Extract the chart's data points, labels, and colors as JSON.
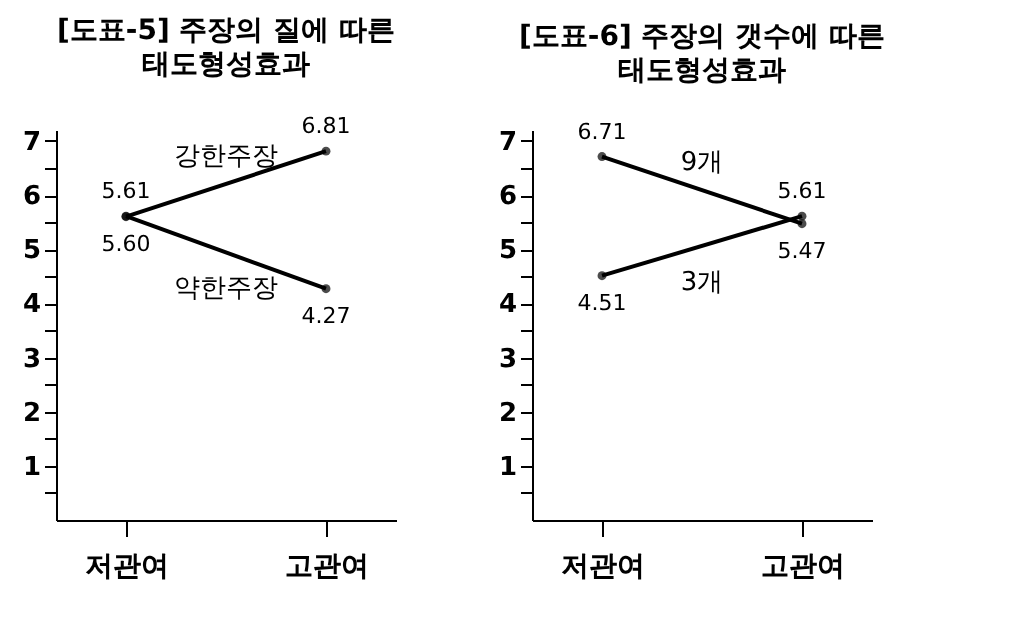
{
  "chart_data": [
    {
      "type": "line",
      "title": "[도표-5] 주장의 질에 따른",
      "subtitle": "태도형성효과",
      "categories": [
        "저관여",
        "고관여"
      ],
      "series": [
        {
          "name": "강한주장",
          "color": "#000000",
          "values": [
            5.6,
            6.81
          ],
          "value_labels": [
            "5.60",
            "6.81"
          ]
        },
        {
          "name": "약한주장",
          "color": "#000000",
          "values": [
            5.61,
            4.27
          ],
          "value_labels": [
            "5.61",
            "4.27"
          ]
        }
      ],
      "ylim": [
        0,
        7.2
      ],
      "yticks": [
        {
          "value": 0.5,
          "label": null
        },
        1,
        {
          "value": 1.5,
          "label": null
        },
        2,
        {
          "value": 2.5,
          "label": null
        },
        3,
        {
          "value": 3.5,
          "label": null
        },
        4,
        {
          "value": 4.5,
          "label": null
        },
        5,
        {
          "value": 5.5,
          "label": null
        },
        6,
        {
          "value": 6.5,
          "label": null
        },
        7
      ],
      "grid": false,
      "legend": false,
      "marker": "circle",
      "line_style": "solid"
    },
    {
      "type": "line",
      "title": "[도표-6] 주장의 갯수에 따른",
      "subtitle": "태도형성효과",
      "categories": [
        "저관여",
        "고관여"
      ],
      "series": [
        {
          "name": "9개",
          "color": "#000000",
          "values": [
            6.71,
            5.47
          ],
          "value_labels": [
            "6.71",
            "5.47"
          ]
        },
        {
          "name": "3개",
          "color": "#000000",
          "values": [
            4.51,
            5.61
          ],
          "value_labels": [
            "4.51",
            "5.61"
          ]
        }
      ],
      "ylim": [
        0,
        7.2
      ],
      "yticks": [
        {
          "value": 0.5,
          "label": null
        },
        1,
        {
          "value": 1.5,
          "label": null
        },
        2,
        {
          "value": 2.5,
          "label": null
        },
        3,
        {
          "value": 3.5,
          "label": null
        },
        4,
        {
          "value": 4.5,
          "label": null
        },
        5,
        {
          "value": 5.5,
          "label": null
        },
        6,
        {
          "value": 6.5,
          "label": null
        },
        7
      ],
      "grid": false,
      "legend": false,
      "marker": "circle",
      "line_style": "solid"
    }
  ]
}
